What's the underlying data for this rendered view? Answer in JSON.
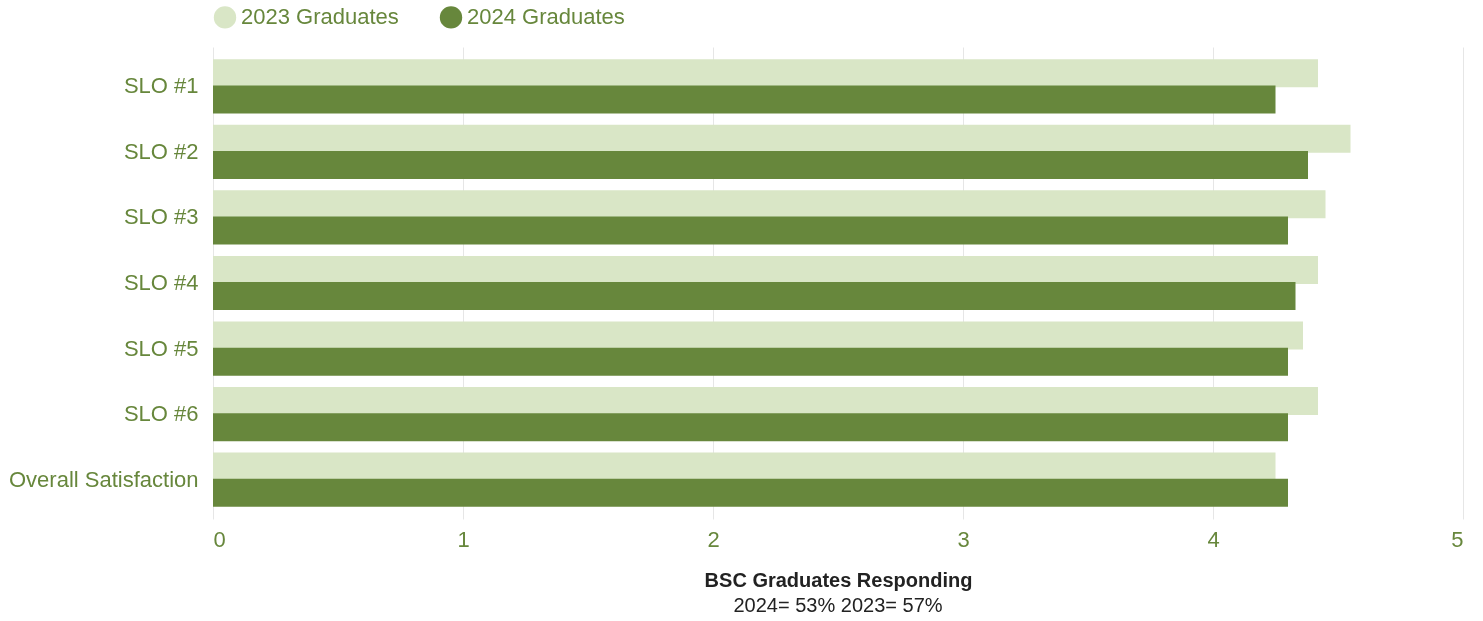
{
  "chart_data": {
    "type": "bar",
    "orientation": "horizontal",
    "categories": [
      "SLO #1",
      "SLO #2",
      "SLO #3",
      "SLO #4",
      "SLO #5",
      "SLO #6",
      "Overall Satisfaction"
    ],
    "series": [
      {
        "name": "2023 Graduates",
        "color": "#d9e6c6",
        "values": [
          4.42,
          4.55,
          4.45,
          4.42,
          4.36,
          4.42,
          4.25
        ]
      },
      {
        "name": "2024 Graduates",
        "color": "#67873c",
        "values": [
          4.25,
          4.38,
          4.3,
          4.33,
          4.3,
          4.3,
          4.3
        ]
      }
    ],
    "xlim": [
      0,
      5
    ],
    "xticks": [
      0,
      1,
      2,
      3,
      4,
      5
    ],
    "xlabel": "BSC Graduates Responding",
    "annotations": [
      "2024= 53%    2023= 57%"
    ],
    "grid": "x",
    "legend": "top"
  }
}
